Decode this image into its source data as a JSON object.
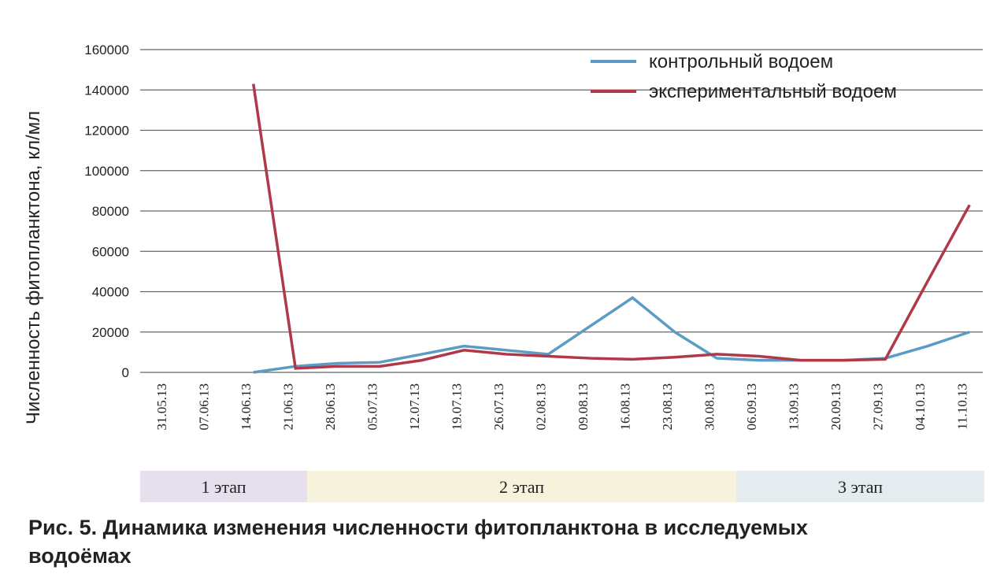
{
  "chart_data": {
    "type": "line",
    "y_label": "Численность фитопланктона, кл/мл",
    "caption": "Рис. 5. Динамика изменения численности фитопланктона в исследуемых водоёмах",
    "categories": [
      "31.05.13",
      "07.06.13",
      "14.06.13",
      "21.06.13",
      "28.06.13",
      "05.07.13",
      "12.07.13",
      "19.07.13",
      "26.07.13",
      "02.08.13",
      "09.08.13",
      "16.08.13",
      "23.08.13",
      "30.08.13",
      "06.09.13",
      "13.09.13",
      "20.09.13",
      "27.09.13",
      "04.10.13",
      "11.10.13"
    ],
    "series": [
      {
        "name": "контрольный водоем",
        "color": "#5b9bc4",
        "values": [
          null,
          null,
          0,
          3000,
          4500,
          5000,
          9000,
          13000,
          11000,
          9000,
          23000,
          37000,
          20000,
          7000,
          6000,
          6000,
          6000,
          7000,
          13000,
          20000
        ]
      },
      {
        "name": "экспериментальный водоем",
        "color": "#b03848",
        "values": [
          null,
          null,
          143000,
          2000,
          3000,
          3000,
          6000,
          11000,
          9000,
          8000,
          7000,
          6500,
          7500,
          9000,
          8000,
          6000,
          6000,
          6500,
          45000,
          83000
        ]
      }
    ],
    "stages": [
      "1 этап",
      "2 этап",
      "3 этап"
    ],
    "ylim": [
      0,
      160000
    ],
    "yticks": [
      0,
      20000,
      40000,
      60000,
      80000,
      100000,
      120000,
      140000,
      160000
    ],
    "grid": true,
    "legend": "top-right"
  }
}
